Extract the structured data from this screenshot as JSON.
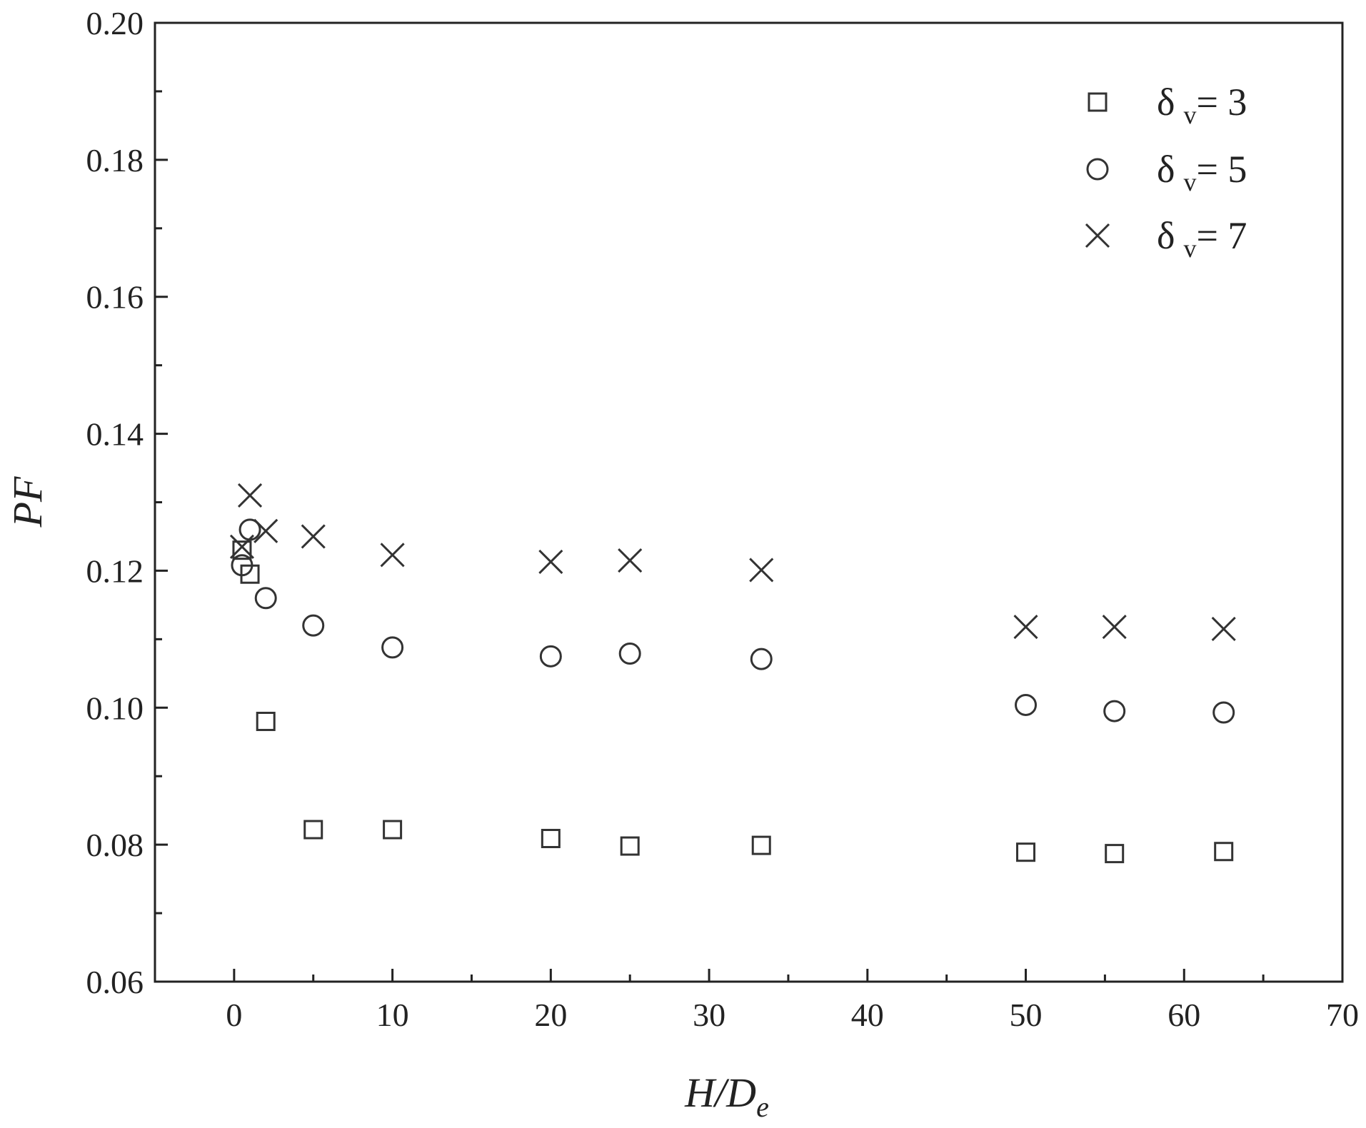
{
  "chart_data": {
    "type": "scatter",
    "xlabel": "H/D",
    "xlabel_sub": "e",
    "ylabel": "PF",
    "xlim": [
      -5,
      70
    ],
    "ylim": [
      0.06,
      0.2
    ],
    "x_ticks": [
      0,
      10,
      20,
      30,
      40,
      50,
      60,
      70
    ],
    "x_tick_labels": [
      "0",
      "10",
      "20",
      "30",
      "40",
      "50",
      "60",
      "70"
    ],
    "y_ticks": [
      0.06,
      0.08,
      0.1,
      0.12,
      0.14,
      0.16,
      0.18,
      0.2
    ],
    "y_tick_labels": [
      "0.06",
      "0.08",
      "0.10",
      "0.12",
      "0.14",
      "0.16",
      "0.18",
      "0.20"
    ],
    "grid": false,
    "legend_position": "top-right",
    "series": [
      {
        "name": "δ v= 3",
        "legend_symbol": "δ",
        "legend_sub": "v",
        "legend_value": "= 3",
        "marker": "square",
        "x": [
          0.5,
          1,
          2,
          5,
          10,
          20,
          25,
          33.3,
          50,
          55.6,
          62.5
        ],
        "y": [
          0.123,
          0.1195,
          0.098,
          0.0822,
          0.0822,
          0.0809,
          0.0798,
          0.0799,
          0.0789,
          0.0787,
          0.079
        ]
      },
      {
        "name": "δ v= 5",
        "legend_symbol": "δ",
        "legend_sub": "v",
        "legend_value": "= 5",
        "marker": "circle",
        "x": [
          0.5,
          1,
          2,
          5,
          10,
          20,
          25,
          33.3,
          50,
          55.6,
          62.5
        ],
        "y": [
          0.1208,
          0.126,
          0.116,
          0.112,
          0.1088,
          0.1075,
          0.1079,
          0.1071,
          0.1004,
          0.0995,
          0.0993
        ]
      },
      {
        "name": "δ v= 7",
        "legend_symbol": "δ",
        "legend_sub": "v",
        "legend_value": "= 7",
        "marker": "cross",
        "x": [
          0.5,
          1,
          2,
          5,
          10,
          20,
          25,
          33.3,
          50,
          55.6,
          62.5
        ],
        "y": [
          0.1235,
          0.131,
          0.1258,
          0.125,
          0.1223,
          0.1213,
          0.1215,
          0.1201,
          0.1118,
          0.1118,
          0.1115
        ]
      }
    ]
  }
}
